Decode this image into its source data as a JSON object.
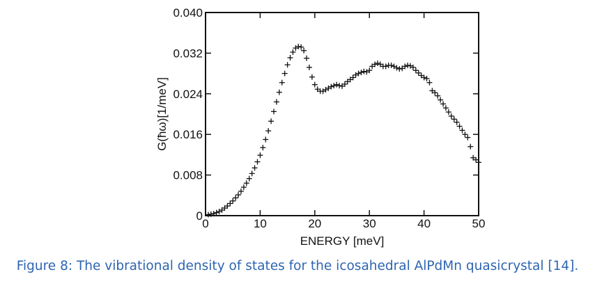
{
  "chart_data": {
    "type": "scatter",
    "marker": "plus",
    "xlabel": "ENERGY [meV]",
    "ylabel": "G(ħω)[1/meV]",
    "xlim": [
      0,
      50
    ],
    "ylim": [
      0,
      0.04
    ],
    "x_ticks": [
      "0",
      "10",
      "20",
      "30",
      "40",
      "50"
    ],
    "y_ticks": [
      "0",
      "0.008",
      "0.016",
      "0.024",
      "0.032",
      "0.040"
    ],
    "grid": false,
    "series": [
      {
        "x": [
          0.5,
          1.0,
          1.5,
          2.0,
          2.5,
          3.0,
          3.5,
          4.0,
          4.5,
          5.0,
          5.5,
          6.0,
          6.5,
          7.0,
          7.5,
          8.0,
          8.5,
          9.0,
          9.5,
          10.0,
          10.5,
          11.0,
          11.5,
          12.0,
          12.5,
          13.0,
          13.5,
          14.0,
          14.5,
          15.0,
          15.5,
          16.0,
          16.5,
          17.0,
          17.5,
          18.0,
          18.5,
          19.0,
          19.5,
          20.0,
          20.5,
          21.0,
          21.5,
          22.0,
          22.5,
          23.0,
          23.5,
          24.0,
          24.5,
          25.0,
          25.5,
          26.0,
          26.5,
          27.0,
          27.5,
          28.0,
          28.5,
          29.0,
          29.5,
          30.0,
          30.5,
          31.0,
          31.5,
          32.0,
          32.5,
          33.0,
          33.5,
          34.0,
          34.5,
          35.0,
          35.5,
          36.0,
          36.5,
          37.0,
          37.5,
          38.0,
          38.5,
          39.0,
          39.5,
          40.0,
          40.5,
          41.0,
          41.5,
          42.0,
          42.5,
          43.0,
          43.5,
          44.0,
          44.5,
          45.0,
          45.5,
          46.0,
          46.5,
          47.0,
          47.5,
          48.0,
          48.5,
          49.0,
          49.5,
          50.0
        ],
        "y": [
          0.0002,
          0.0003,
          0.0004,
          0.0006,
          0.0008,
          0.0011,
          0.0015,
          0.0019,
          0.0024,
          0.0029,
          0.0035,
          0.0041,
          0.0048,
          0.0056,
          0.0064,
          0.0073,
          0.0083,
          0.0094,
          0.0106,
          0.0119,
          0.0134,
          0.015,
          0.0167,
          0.0186,
          0.0205,
          0.0224,
          0.0243,
          0.0262,
          0.028,
          0.0297,
          0.0311,
          0.0322,
          0.033,
          0.0333,
          0.0332,
          0.0325,
          0.031,
          0.0292,
          0.0273,
          0.0258,
          0.0249,
          0.0245,
          0.0245,
          0.0248,
          0.0251,
          0.0254,
          0.0256,
          0.0258,
          0.0256,
          0.0255,
          0.0259,
          0.0264,
          0.0268,
          0.0272,
          0.0277,
          0.028,
          0.0282,
          0.0284,
          0.0283,
          0.0286,
          0.0294,
          0.0298,
          0.03,
          0.0298,
          0.0294,
          0.0294,
          0.0296,
          0.0296,
          0.0294,
          0.0291,
          0.0289,
          0.029,
          0.0294,
          0.0296,
          0.0295,
          0.0292,
          0.0286,
          0.0281,
          0.0276,
          0.0272,
          0.027,
          0.0262,
          0.0246,
          0.0242,
          0.0236,
          0.0228,
          0.022,
          0.0212,
          0.0204,
          0.0196,
          0.019,
          0.0184,
          0.0176,
          0.0168,
          0.016,
          0.0154,
          0.0136,
          0.0114,
          0.011,
          0.0105
        ]
      }
    ]
  },
  "caption": "Figure 8: The vibrational density of states for the icosahedral AlPdMn quasicrystal [14]."
}
